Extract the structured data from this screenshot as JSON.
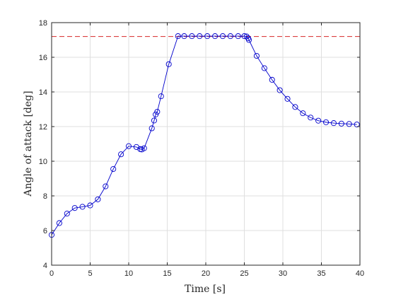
{
  "chart_data": {
    "type": "line",
    "title": "",
    "xlabel": "Time [s]",
    "ylabel": "Angle of attack [deg]",
    "xlim": [
      0,
      40
    ],
    "ylim": [
      4,
      18
    ],
    "xticks": [
      0,
      5,
      10,
      15,
      20,
      25,
      30,
      35,
      40
    ],
    "yticks": [
      4,
      6,
      8,
      10,
      12,
      14,
      16,
      18
    ],
    "xtick_labels": [
      "0",
      "5",
      "10",
      "15",
      "20",
      "25",
      "30",
      "35",
      "40"
    ],
    "ytick_labels": [
      "4",
      "6",
      "8",
      "10",
      "12",
      "14",
      "16",
      "18"
    ],
    "grid": true,
    "series": [
      {
        "color": "#0000cc",
        "marker": "circle",
        "x": [
          0,
          1,
          2,
          3,
          4,
          5,
          6,
          7,
          8,
          9,
          10,
          11,
          11.5,
          11.7,
          12,
          13,
          13.3,
          13.5,
          13.7,
          14.2,
          15.2,
          16.4,
          17.2,
          18.2,
          19.2,
          20.2,
          21.2,
          22.2,
          23.2,
          24.2,
          25,
          25.3,
          25.5,
          25.6,
          26.6,
          27.6,
          28.6,
          29.6,
          30.6,
          31.6,
          32.6,
          33.6,
          34.6,
          35.6,
          36.6,
          37.6,
          38.6,
          39.6
        ],
        "y": [
          5.75,
          6.43,
          6.98,
          7.3,
          7.37,
          7.45,
          7.8,
          8.55,
          9.55,
          10.4,
          10.87,
          10.82,
          10.7,
          10.68,
          10.75,
          11.9,
          12.35,
          12.7,
          12.85,
          13.75,
          15.6,
          17.22,
          17.22,
          17.22,
          17.22,
          17.22,
          17.22,
          17.22,
          17.22,
          17.22,
          17.22,
          17.2,
          17.1,
          17.0,
          16.08,
          15.37,
          14.7,
          14.1,
          13.6,
          13.13,
          12.77,
          12.52,
          12.34,
          12.25,
          12.2,
          12.17,
          12.15,
          12.12
        ]
      }
    ],
    "reference_line": {
      "y": 17.2,
      "color": "#d62728",
      "style": "dashed"
    }
  }
}
